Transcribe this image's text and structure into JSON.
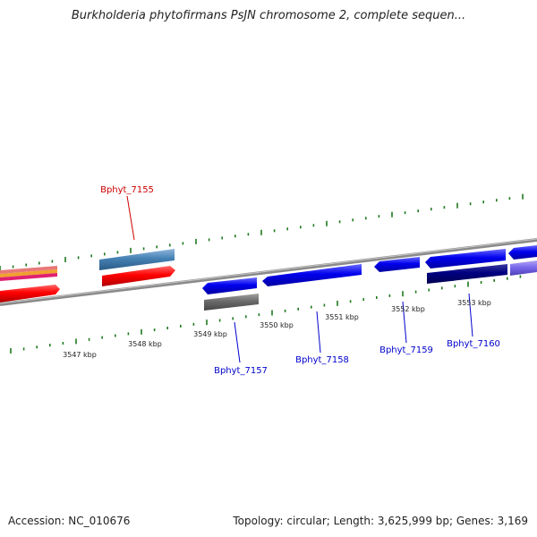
{
  "title": "Burkholderia phytofirmans PsJN chromosome 2, complete sequen...",
  "footer": {
    "accession": "Accession: NC_010676",
    "summary": "Topology: circular; Length: 3,625,999 bp; Genes: 3,169"
  },
  "colors": {
    "backbone": "#808080",
    "ticks": "#1f7a1f",
    "label_top": "#cc0000",
    "label_bottom": "#0000cc"
  },
  "scale": {
    "unit": "kbp",
    "labels": [
      "3547 kbp",
      "3548 kbp",
      "3549 kbp",
      "3550 kbp",
      "3551 kbp",
      "3552 kbp",
      "3553 kbp"
    ]
  },
  "genes": {
    "top": [
      {
        "label": "Bphyt_7155",
        "color": "#cc0000"
      }
    ],
    "bottom": [
      {
        "label": "Bphyt_7157",
        "color": "#0000cc"
      },
      {
        "label": "Bphyt_7158",
        "color": "#0000cc"
      },
      {
        "label": "Bphyt_7159",
        "color": "#0000cc"
      },
      {
        "label": "Bphyt_7160",
        "color": "#0000cc"
      }
    ]
  }
}
